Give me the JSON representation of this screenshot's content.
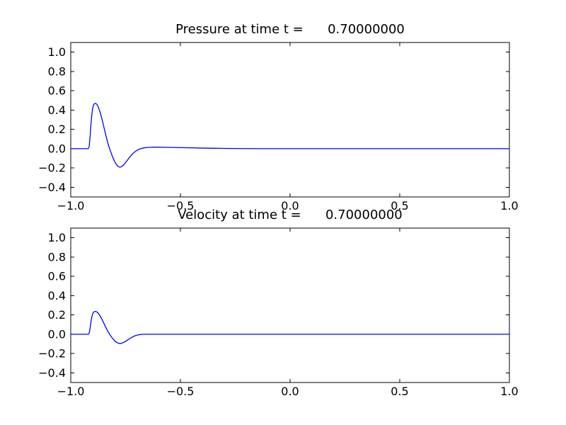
{
  "figure": {
    "background": "#ffffff",
    "axis_color": "#000000",
    "line_color": "#0000ff"
  },
  "chart_data": [
    {
      "type": "line",
      "title": "Pressure at time t =      0.70000000",
      "xlabel": "",
      "ylabel": "",
      "xlim": [
        -1.0,
        1.0
      ],
      "ylim": [
        -0.5,
        1.1
      ],
      "xtick_values": [
        -1.0,
        -0.5,
        0.0,
        0.5,
        1.0
      ],
      "xtick_labels": [
        "−1.0",
        "−0.5",
        "0.0",
        "0.5",
        "1.0"
      ],
      "ytick_values": [
        1.0,
        0.8,
        0.6,
        0.4,
        0.2,
        0.0,
        -0.2,
        -0.4
      ],
      "ytick_labels": [
        "1.0",
        "0.8",
        "0.6",
        "0.4",
        "0.2",
        "0.0",
        "−0.2",
        "−0.4"
      ],
      "grid": false,
      "legend": null,
      "series": [
        {
          "name": "pressure",
          "color": "#0000ff",
          "points": [
            [
              -1.0,
              0
            ],
            [
              -0.96,
              0
            ],
            [
              -0.93,
              0
            ],
            [
              -0.92,
              0.001
            ],
            [
              -0.916,
              0.02
            ],
            [
              -0.912,
              0.12
            ],
            [
              -0.908,
              0.25
            ],
            [
              -0.904,
              0.35
            ],
            [
              -0.9,
              0.42
            ],
            [
              -0.896,
              0.452
            ],
            [
              -0.892,
              0.466
            ],
            [
              -0.888,
              0.47
            ],
            [
              -0.884,
              0.466
            ],
            [
              -0.88,
              0.455
            ],
            [
              -0.875,
              0.434
            ],
            [
              -0.87,
              0.404
            ],
            [
              -0.865,
              0.368
            ],
            [
              -0.86,
              0.327
            ],
            [
              -0.855,
              0.281
            ],
            [
              -0.85,
              0.234
            ],
            [
              -0.845,
              0.186
            ],
            [
              -0.84,
              0.139
            ],
            [
              -0.835,
              0.094
            ],
            [
              -0.83,
              0.052
            ],
            [
              -0.825,
              0.014
            ],
            [
              -0.82,
              -0.02
            ],
            [
              -0.815,
              -0.051
            ],
            [
              -0.81,
              -0.081
            ],
            [
              -0.805,
              -0.108
            ],
            [
              -0.8,
              -0.132
            ],
            [
              -0.795,
              -0.153
            ],
            [
              -0.79,
              -0.17
            ],
            [
              -0.785,
              -0.182
            ],
            [
              -0.78,
              -0.189
            ],
            [
              -0.775,
              -0.191
            ],
            [
              -0.77,
              -0.188
            ],
            [
              -0.765,
              -0.181
            ],
            [
              -0.76,
              -0.171
            ],
            [
              -0.755,
              -0.158
            ],
            [
              -0.75,
              -0.144
            ],
            [
              -0.742,
              -0.12
            ],
            [
              -0.734,
              -0.096
            ],
            [
              -0.726,
              -0.074
            ],
            [
              -0.718,
              -0.054
            ],
            [
              -0.71,
              -0.037
            ],
            [
              -0.702,
              -0.023
            ],
            [
              -0.694,
              -0.012
            ],
            [
              -0.686,
              -0.004
            ],
            [
              -0.678,
              0.002
            ],
            [
              -0.67,
              0.006
            ],
            [
              -0.66,
              0.01
            ],
            [
              -0.648,
              0.013
            ],
            [
              -0.635,
              0.014
            ],
            [
              -0.62,
              0.015
            ],
            [
              -0.6,
              0.015
            ],
            [
              -0.57,
              0.014
            ],
            [
              -0.54,
              0.013
            ],
            [
              -0.5,
              0.011
            ],
            [
              -0.46,
              0.009
            ],
            [
              -0.42,
              0.007
            ],
            [
              -0.38,
              0.005
            ],
            [
              -0.34,
              0.004
            ],
            [
              -0.3,
              0.003
            ],
            [
              -0.26,
              0.002
            ],
            [
              -0.22,
              0.001
            ],
            [
              -0.18,
              0.001
            ],
            [
              -0.14,
              0
            ],
            [
              -0.1,
              0
            ],
            [
              0.0,
              0
            ],
            [
              0.2,
              0
            ],
            [
              0.5,
              0
            ],
            [
              0.75,
              0
            ],
            [
              1.0,
              0
            ]
          ]
        }
      ]
    },
    {
      "type": "line",
      "title": "Velocity at time t =      0.70000000",
      "xlabel": "",
      "ylabel": "",
      "xlim": [
        -1.0,
        1.0
      ],
      "ylim": [
        -0.5,
        1.1
      ],
      "xtick_values": [
        -1.0,
        -0.5,
        0.0,
        0.5,
        1.0
      ],
      "xtick_labels": [
        "−1.0",
        "−0.5",
        "0.0",
        "0.5",
        "1.0"
      ],
      "ytick_values": [
        1.0,
        0.8,
        0.6,
        0.4,
        0.2,
        0.0,
        -0.2,
        -0.4
      ],
      "ytick_labels": [
        "1.0",
        "0.8",
        "0.6",
        "0.4",
        "0.2",
        "0.0",
        "−0.2",
        "−0.4"
      ],
      "grid": false,
      "legend": null,
      "series": [
        {
          "name": "velocity",
          "color": "#0000ff",
          "points": [
            [
              -1.0,
              0
            ],
            [
              -0.96,
              0
            ],
            [
              -0.93,
              0
            ],
            [
              -0.92,
              0.001
            ],
            [
              -0.916,
              0.01
            ],
            [
              -0.912,
              0.06
            ],
            [
              -0.908,
              0.126
            ],
            [
              -0.904,
              0.177
            ],
            [
              -0.9,
              0.212
            ],
            [
              -0.896,
              0.228
            ],
            [
              -0.892,
              0.235
            ],
            [
              -0.888,
              0.237
            ],
            [
              -0.884,
              0.235
            ],
            [
              -0.88,
              0.229
            ],
            [
              -0.875,
              0.219
            ],
            [
              -0.87,
              0.204
            ],
            [
              -0.865,
              0.186
            ],
            [
              -0.86,
              0.165
            ],
            [
              -0.855,
              0.142
            ],
            [
              -0.85,
              0.118
            ],
            [
              -0.845,
              0.094
            ],
            [
              -0.84,
              0.07
            ],
            [
              -0.835,
              0.047
            ],
            [
              -0.83,
              0.026
            ],
            [
              -0.825,
              0.007
            ],
            [
              -0.82,
              -0.01
            ],
            [
              -0.815,
              -0.026
            ],
            [
              -0.81,
              -0.041
            ],
            [
              -0.805,
              -0.054
            ],
            [
              -0.8,
              -0.066
            ],
            [
              -0.795,
              -0.077
            ],
            [
              -0.79,
              -0.085
            ],
            [
              -0.785,
              -0.091
            ],
            [
              -0.78,
              -0.095
            ],
            [
              -0.775,
              -0.096
            ],
            [
              -0.77,
              -0.095
            ],
            [
              -0.765,
              -0.091
            ],
            [
              -0.76,
              -0.086
            ],
            [
              -0.755,
              -0.08
            ],
            [
              -0.75,
              -0.073
            ],
            [
              -0.742,
              -0.061
            ],
            [
              -0.734,
              -0.049
            ],
            [
              -0.726,
              -0.038
            ],
            [
              -0.718,
              -0.028
            ],
            [
              -0.71,
              -0.019
            ],
            [
              -0.702,
              -0.012
            ],
            [
              -0.694,
              -0.007
            ],
            [
              -0.686,
              -0.004
            ],
            [
              -0.678,
              -0.002
            ],
            [
              -0.67,
              -0.001
            ],
            [
              -0.66,
              0
            ],
            [
              -0.64,
              0
            ],
            [
              -0.6,
              0
            ],
            [
              -0.5,
              0
            ],
            [
              -0.3,
              0
            ],
            [
              0.0,
              0
            ],
            [
              0.25,
              0
            ],
            [
              0.5,
              0
            ],
            [
              0.75,
              0
            ],
            [
              1.0,
              0
            ]
          ]
        }
      ]
    }
  ]
}
